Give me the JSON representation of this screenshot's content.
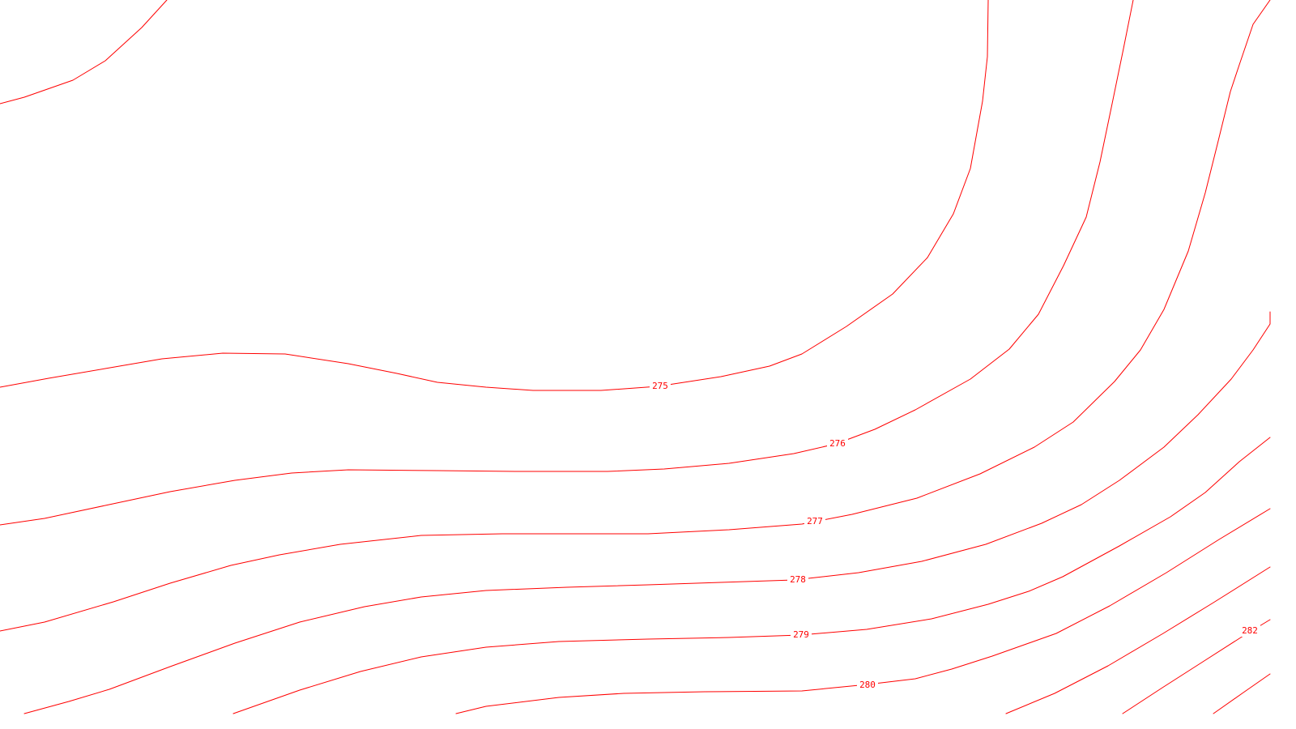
{
  "map": {
    "type": "contour-map",
    "colors": {
      "background": "#ffffff",
      "contour_line": "#ff0000",
      "label_text": "#ff0000"
    },
    "contours": [
      {
        "id": "c274",
        "label": ""
      },
      {
        "id": "c275",
        "label": "275"
      },
      {
        "id": "c276",
        "label": "276"
      },
      {
        "id": "c277",
        "label": "277"
      },
      {
        "id": "c278",
        "label": "278"
      },
      {
        "id": "c279",
        "label": "279"
      },
      {
        "id": "c280",
        "label": "280"
      },
      {
        "id": "c281",
        "label": ""
      },
      {
        "id": "c282",
        "label": "282"
      }
    ]
  }
}
